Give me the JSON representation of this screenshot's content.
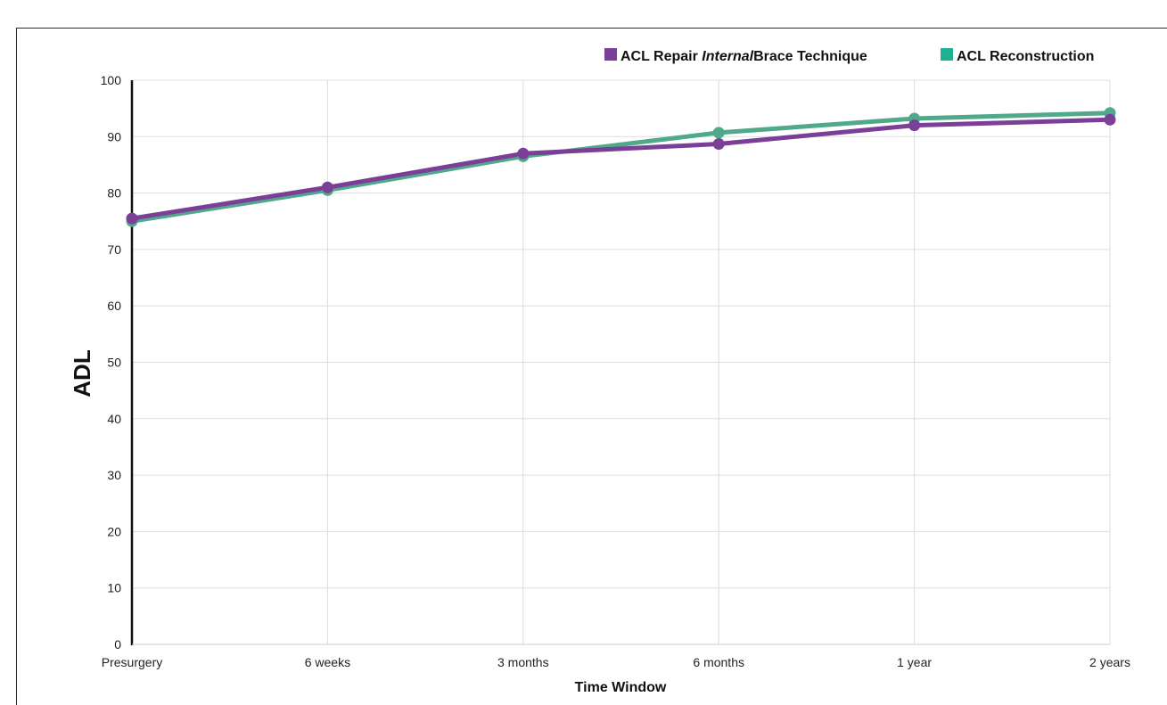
{
  "chart_data": {
    "type": "line",
    "categories": [
      "Presurgery",
      "6 weeks",
      "3 months",
      "6 months",
      "1 year",
      "2 years"
    ],
    "ylabel": "ADL",
    "xlabel": "Time Window",
    "ylim": [
      0,
      100
    ],
    "yticks": [
      0,
      10,
      20,
      30,
      40,
      50,
      60,
      70,
      80,
      90,
      100
    ],
    "grid": true,
    "legend_position": "top-right",
    "series": [
      {
        "name": "ACL Repair InternalBrace Technique",
        "name_parts": [
          "ACL Repair ",
          "Internal",
          "Brace Technique"
        ],
        "color": "#7b3f98",
        "values": [
          75.5,
          81,
          87,
          88.7,
          92,
          93
        ]
      },
      {
        "name": "ACL Reconstruction",
        "name_parts": [
          "ACL Reconstruction"
        ],
        "color": "#4fa98a",
        "legend_color": "#1fb091",
        "values": [
          75,
          80.5,
          86.5,
          90.7,
          93.2,
          94.2
        ]
      }
    ]
  }
}
